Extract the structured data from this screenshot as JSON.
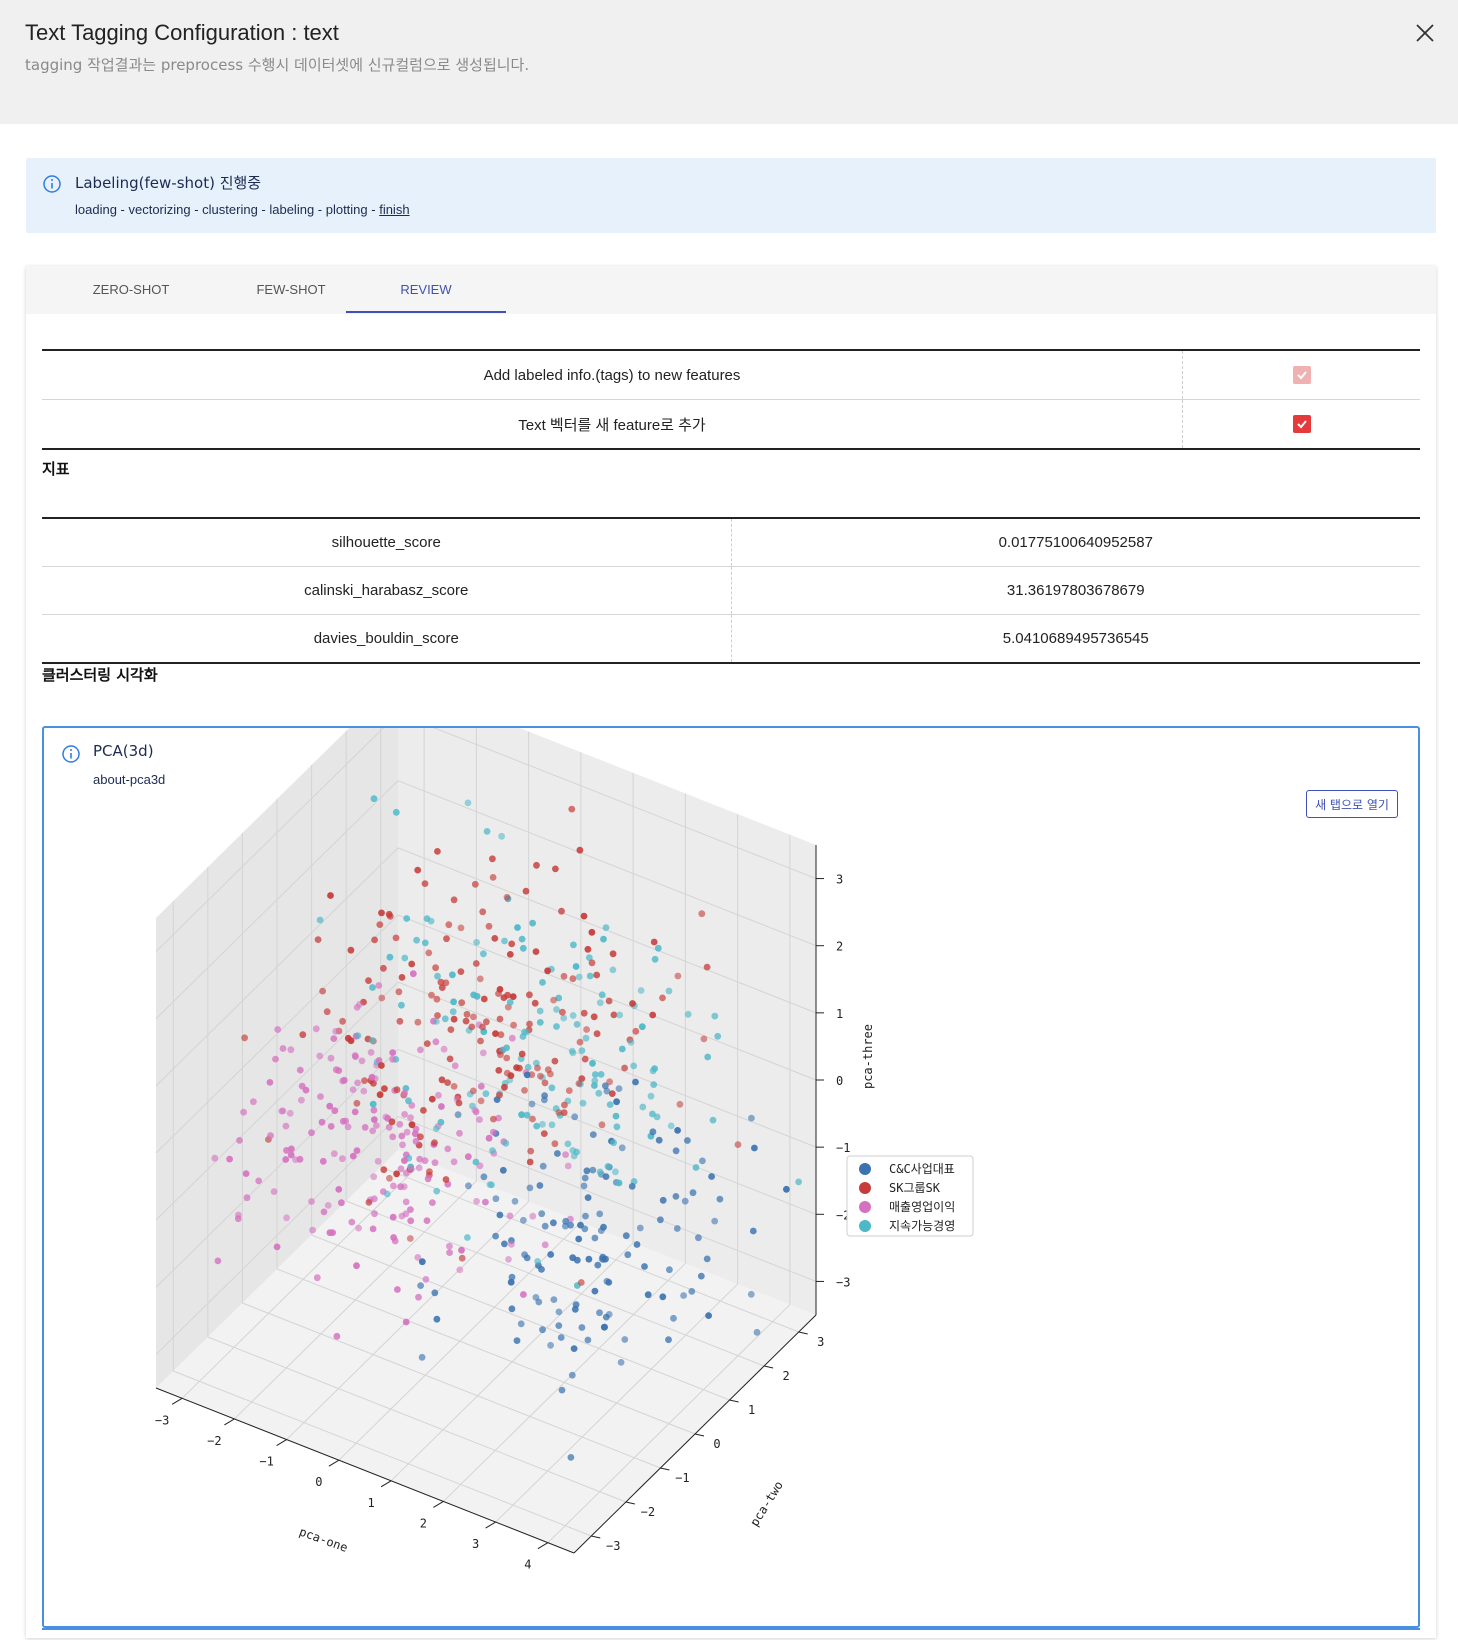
{
  "header": {
    "title": "Text Tagging Configuration : text",
    "subtitle": "tagging 작업결과는 preprocess 수행시 데이터셋에 신규컬럼으로 생성됩니다."
  },
  "banner": {
    "title": "Labeling(few-shot) 진행중",
    "steps": "loading - vectorizing - clustering - labeling - plotting - ",
    "current_step": "finish",
    "icon": "info-icon"
  },
  "tabs": [
    {
      "label": "ZERO-SHOT",
      "active": false
    },
    {
      "label": "FEW-SHOT",
      "active": false
    },
    {
      "label": "REVIEW",
      "active": true
    }
  ],
  "options": [
    {
      "label": "Add labeled info.(tags) to new features",
      "checked": true,
      "disabled": true
    },
    {
      "label": "Text 벡터를 새 feature로 추가",
      "checked": true,
      "disabled": false
    }
  ],
  "metrics_title": "지표",
  "metrics": [
    {
      "name": "silhouette_score",
      "value": "0.01775100640952587"
    },
    {
      "name": "calinski_harabasz_score",
      "value": "31.36197803678679"
    },
    {
      "name": "davies_bouldin_score",
      "value": "5.0410689495736545"
    }
  ],
  "viz_title": "클러스터링 시각화",
  "viz": {
    "title": "PCA(3d)",
    "subtitle": "about-pca3d",
    "open_button": "새 탭으로 열기"
  },
  "chart_data": {
    "type": "scatter",
    "title": "",
    "xlabel": "pca-one",
    "ylabel": "pca-two",
    "zlabel": "pca-three",
    "x_ticks": [
      "−3",
      "−2",
      "−1",
      "0",
      "1",
      "2",
      "3",
      "4"
    ],
    "y_ticks": [
      "−3",
      "−2",
      "−1",
      "0",
      "1",
      "2",
      "3"
    ],
    "z_ticks": [
      "−3",
      "−2",
      "−1",
      "0",
      "1",
      "2",
      "3"
    ],
    "xlim": [
      -3.5,
      4.5
    ],
    "ylim": [
      -3.5,
      3.5
    ],
    "zlim": [
      -3.5,
      3.5
    ],
    "legend_position": "right",
    "series": [
      {
        "name": "C&C사업대표",
        "color": "#3a73b0",
        "center": [
          2.2,
          0.5,
          -1.5
        ],
        "spread": [
          1.2,
          1.2,
          0.9
        ],
        "count": 140
      },
      {
        "name": "SK그룹SK",
        "color": "#c63c3a",
        "center": [
          0.0,
          0.8,
          0.8
        ],
        "spread": [
          1.5,
          1.3,
          1.0
        ],
        "count": 190
      },
      {
        "name": "매출영업이익",
        "color": "#d572c0",
        "center": [
          -1.2,
          -0.6,
          -0.7
        ],
        "spread": [
          1.4,
          1.3,
          0.9
        ],
        "count": 190
      },
      {
        "name": "지속가능경영",
        "color": "#4fb8c8",
        "center": [
          0.6,
          1.4,
          0.4
        ],
        "spread": [
          1.6,
          1.3,
          1.1
        ],
        "count": 150
      }
    ]
  }
}
